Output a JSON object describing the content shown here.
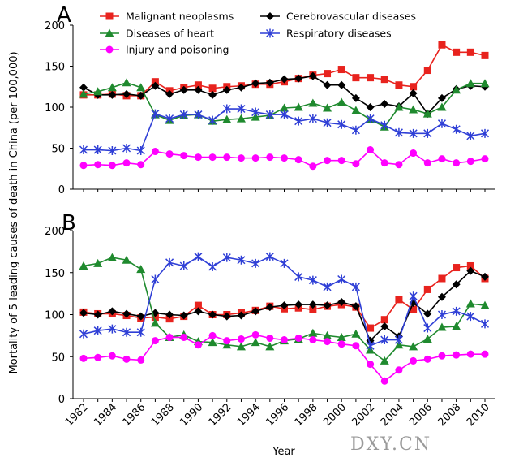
{
  "chart_data": {
    "type": "line",
    "ylabel": "Mortality of 5 leading causes of death in China (per 100,000)",
    "xlabel": "Year",
    "x": [
      1982,
      1983,
      1984,
      1985,
      1986,
      1987,
      1988,
      1989,
      1990,
      1991,
      1992,
      1993,
      1994,
      1995,
      1996,
      1997,
      1998,
      1999,
      2000,
      2001,
      2002,
      2003,
      2004,
      2005,
      2006,
      2007,
      2008,
      2009,
      2010
    ],
    "x_tick_labels": [
      "1982",
      "1984",
      "1986",
      "1988",
      "1990",
      "1992",
      "1994",
      "1996",
      "1998",
      "2000",
      "2002",
      "2004",
      "2006",
      "2008",
      "2010"
    ],
    "y_tick_labels": [
      "0",
      "50",
      "100",
      "150",
      "200"
    ],
    "ylim": [
      0,
      200
    ],
    "legend": "top",
    "panels": [
      {
        "label": "A",
        "series": [
          {
            "name": "Malignant neoplasms",
            "color": "#e8231e",
            "marker": "square",
            "values": [
              115,
              115,
              116,
              114,
              114,
              131,
              120,
              124,
              127,
              123,
              125,
              126,
              128,
              128,
              131,
              135,
              139,
              141,
              146,
              136,
              136,
              134,
              127,
              125,
              145,
              176,
              167,
              167,
              163
            ]
          },
          {
            "name": "Cerebrovascular diseases",
            "color": "#000000",
            "marker": "diamond",
            "values": [
              124,
              115,
              115,
              116,
              114,
              126,
              116,
              121,
              121,
              115,
              121,
              124,
              129,
              130,
              134,
              135,
              138,
              127,
              127,
              111,
              100,
              104,
              101,
              117,
              92,
              111,
              122,
              126,
              125
            ]
          },
          {
            "name": "Diseases of heart",
            "color": "#1f8a2e",
            "marker": "triangle",
            "values": [
              116,
              119,
              124,
              130,
              124,
              91,
              84,
              90,
              91,
              83,
              85,
              86,
              88,
              90,
              99,
              100,
              105,
              99,
              106,
              96,
              85,
              76,
              100,
              97,
              92,
              100,
              121,
              129,
              129
            ]
          },
          {
            "name": "Respiratory diseases",
            "color": "#2f3fd6",
            "marker": "star",
            "values": [
              48,
              48,
              47,
              50,
              47,
              92,
              86,
              91,
              91,
              84,
              98,
              98,
              94,
              91,
              91,
              83,
              86,
              81,
              79,
              72,
              86,
              78,
              69,
              68,
              68,
              80,
              73,
              65,
              68
            ]
          },
          {
            "name": "Injury and poisoning",
            "color": "#ff00ff",
            "marker": "circle",
            "values": [
              29,
              30,
              29,
              32,
              30,
              46,
              43,
              41,
              39,
              39,
              39,
              38,
              38,
              39,
              38,
              36,
              28,
              35,
              35,
              31,
              48,
              32,
              30,
              44,
              32,
              37,
              32,
              34,
              37
            ]
          }
        ]
      },
      {
        "label": "B",
        "series": [
          {
            "name": "Malignant neoplasms",
            "color": "#e8231e",
            "marker": "square",
            "values": [
              103,
              101,
              101,
              99,
              96,
              97,
              95,
              98,
              111,
              100,
              100,
              102,
              105,
              110,
              107,
              108,
              106,
              110,
              112,
              109,
              84,
              94,
              118,
              106,
              130,
              143,
              156,
              158,
              143
            ]
          },
          {
            "name": "Cerebrovascular diseases",
            "color": "#000000",
            "marker": "diamond",
            "values": [
              102,
              100,
              104,
              101,
              98,
              102,
              100,
              99,
              104,
              100,
              98,
              99,
              104,
              109,
              111,
              112,
              112,
              111,
              115,
              110,
              69,
              86,
              74,
              114,
              101,
              121,
              136,
              152,
              145
            ]
          },
          {
            "name": "Diseases of heart",
            "color": "#1f8a2e",
            "marker": "triangle",
            "values": [
              158,
              161,
              168,
              165,
              154,
              90,
              73,
              76,
              68,
              67,
              64,
              62,
              67,
              62,
              69,
              71,
              78,
              75,
              73,
              77,
              58,
              45,
              64,
              62,
              71,
              85,
              86,
              113,
              111
            ]
          },
          {
            "name": "Respiratory diseases",
            "color": "#2f3fd6",
            "marker": "star",
            "values": [
              77,
              81,
              83,
              79,
              79,
              142,
              162,
              158,
              169,
              157,
              168,
              165,
              161,
              169,
              161,
              145,
              141,
              133,
              142,
              133,
              63,
              70,
              70,
              122,
              84,
              100,
              104,
              98,
              89
            ]
          },
          {
            "name": "Injury and poisoning",
            "color": "#ff00ff",
            "marker": "circle",
            "values": [
              48,
              49,
              51,
              47,
              46,
              69,
              73,
              73,
              64,
              75,
              69,
              71,
              76,
              72,
              70,
              72,
              70,
              68,
              65,
              63,
              41,
              21,
              34,
              45,
              47,
              51,
              52,
              53,
              53
            ]
          }
        ]
      }
    ]
  },
  "watermark": "DXY.CN"
}
